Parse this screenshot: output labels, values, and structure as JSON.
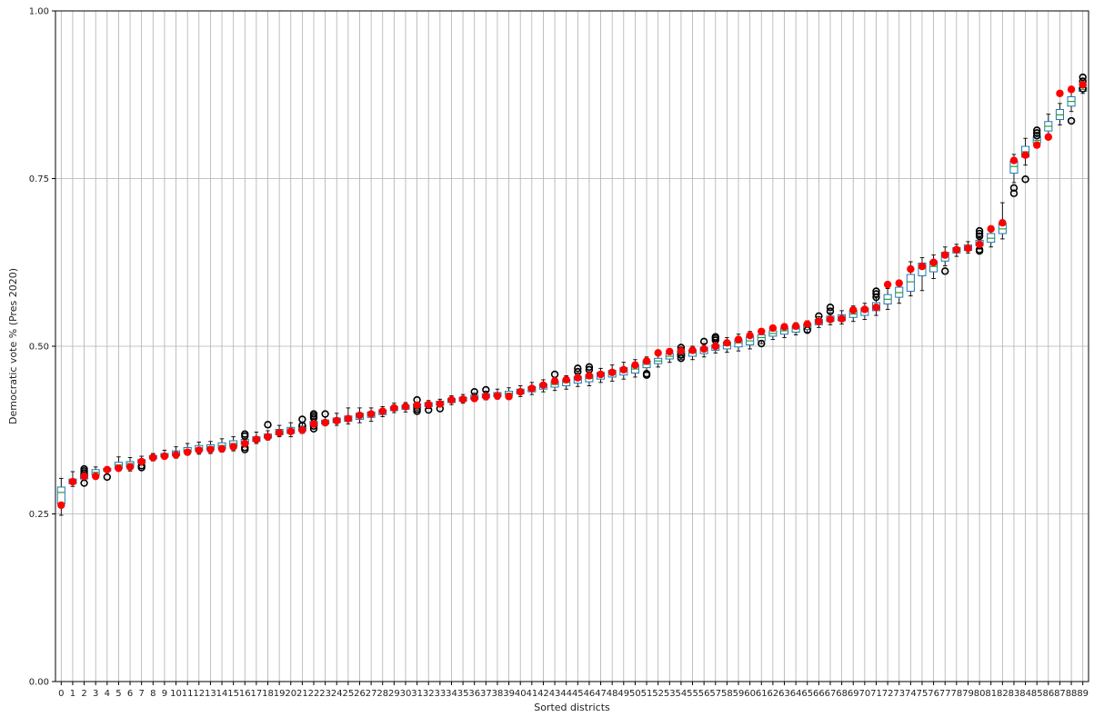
{
  "chart_data": {
    "type": "box",
    "title": "",
    "xlabel": "Sorted districts",
    "ylabel": "Democratic vote % (Pres 2020)",
    "ylim": [
      0.0,
      1.0
    ],
    "yticks": [
      "0.00",
      "0.25",
      "0.50",
      "0.75",
      "1.00"
    ],
    "ytick_values": [
      0.0,
      0.25,
      0.5,
      0.75,
      1.0
    ],
    "grid": true,
    "colors": {
      "box": "#1f77b4",
      "median": "#2ca02c",
      "whisker": "#000000",
      "enacted_point": "#ff0000",
      "outlier": "#000000",
      "grid": "#b0b0b0"
    },
    "categories": [
      "0",
      "1",
      "2",
      "3",
      "4",
      "5",
      "6",
      "7",
      "8",
      "9",
      "10",
      "11",
      "12",
      "13",
      "14",
      "15",
      "16",
      "17",
      "18",
      "19",
      "20",
      "21",
      "22",
      "23",
      "24",
      "25",
      "26",
      "27",
      "28",
      "29",
      "30",
      "31",
      "32",
      "33",
      "34",
      "35",
      "36",
      "37",
      "38",
      "39",
      "40",
      "41",
      "42",
      "43",
      "44",
      "45",
      "46",
      "47",
      "48",
      "49",
      "50",
      "51",
      "52",
      "53",
      "54",
      "55",
      "56",
      "57",
      "58",
      "59",
      "60",
      "61",
      "62",
      "63",
      "64",
      "65",
      "66",
      "67",
      "68",
      "69",
      "70",
      "71",
      "72",
      "73",
      "74",
      "75",
      "76",
      "77",
      "78",
      "79",
      "80",
      "81",
      "82",
      "83",
      "84",
      "85",
      "86",
      "87",
      "88",
      "89"
    ],
    "enacted_plan": [
      0.263,
      0.298,
      0.306,
      0.306,
      0.316,
      0.318,
      0.32,
      0.328,
      0.334,
      0.336,
      0.338,
      0.342,
      0.345,
      0.346,
      0.347,
      0.35,
      0.355,
      0.361,
      0.365,
      0.371,
      0.373,
      0.375,
      0.384,
      0.386,
      0.389,
      0.392,
      0.397,
      0.399,
      0.403,
      0.408,
      0.41,
      0.412,
      0.413,
      0.414,
      0.42,
      0.421,
      0.422,
      0.425,
      0.426,
      0.425,
      0.432,
      0.437,
      0.442,
      0.448,
      0.45,
      0.453,
      0.456,
      0.458,
      0.461,
      0.465,
      0.472,
      0.478,
      0.49,
      0.492,
      0.493,
      0.494,
      0.496,
      0.5,
      0.505,
      0.51,
      0.516,
      0.522,
      0.527,
      0.529,
      0.53,
      0.533,
      0.537,
      0.54,
      0.541,
      0.554,
      0.555,
      0.558,
      0.592,
      0.594,
      0.615,
      0.619,
      0.625,
      0.636,
      0.644,
      0.646,
      0.652,
      0.675,
      0.684,
      0.777,
      0.785,
      0.8,
      0.812,
      0.877,
      0.883,
      0.89
    ],
    "boxes": [
      {
        "whislo": 0.248,
        "q1": 0.265,
        "med": 0.282,
        "q3": 0.29,
        "whishi": 0.303,
        "fliers": []
      },
      {
        "whislo": 0.291,
        "q1": 0.295,
        "med": 0.299,
        "q3": 0.302,
        "whishi": 0.313,
        "fliers": []
      },
      {
        "whislo": 0.3,
        "q1": 0.302,
        "med": 0.305,
        "q3": 0.309,
        "whishi": 0.313,
        "fliers": [
          0.296,
          0.311,
          0.314,
          0.317
        ]
      },
      {
        "whislo": 0.303,
        "q1": 0.308,
        "med": 0.312,
        "q3": 0.316,
        "whishi": 0.32,
        "fliers": []
      },
      {
        "whislo": 0.313,
        "q1": 0.314,
        "med": 0.316,
        "q3": 0.318,
        "whishi": 0.32,
        "fliers": [
          0.305
        ]
      },
      {
        "whislo": 0.314,
        "q1": 0.318,
        "med": 0.323,
        "q3": 0.327,
        "whishi": 0.335,
        "fliers": []
      },
      {
        "whislo": 0.314,
        "q1": 0.32,
        "med": 0.325,
        "q3": 0.328,
        "whishi": 0.334,
        "fliers": []
      },
      {
        "whislo": 0.323,
        "q1": 0.326,
        "med": 0.328,
        "q3": 0.331,
        "whishi": 0.336,
        "fliers": [
          0.319,
          0.322
        ]
      },
      {
        "whislo": 0.329,
        "q1": 0.332,
        "med": 0.334,
        "q3": 0.337,
        "whishi": 0.34,
        "fliers": []
      },
      {
        "whislo": 0.332,
        "q1": 0.335,
        "med": 0.337,
        "q3": 0.34,
        "whishi": 0.345,
        "fliers": []
      },
      {
        "whislo": 0.333,
        "q1": 0.337,
        "med": 0.341,
        "q3": 0.344,
        "whishi": 0.35,
        "fliers": []
      },
      {
        "whislo": 0.338,
        "q1": 0.342,
        "med": 0.345,
        "q3": 0.349,
        "whishi": 0.355,
        "fliers": []
      },
      {
        "whislo": 0.339,
        "q1": 0.344,
        "med": 0.348,
        "q3": 0.352,
        "whishi": 0.357,
        "fliers": []
      },
      {
        "whislo": 0.34,
        "q1": 0.346,
        "med": 0.35,
        "q3": 0.353,
        "whishi": 0.358,
        "fliers": []
      },
      {
        "whislo": 0.342,
        "q1": 0.348,
        "med": 0.352,
        "q3": 0.356,
        "whishi": 0.362,
        "fliers": []
      },
      {
        "whislo": 0.344,
        "q1": 0.351,
        "med": 0.355,
        "q3": 0.359,
        "whishi": 0.365,
        "fliers": []
      },
      {
        "whislo": 0.351,
        "q1": 0.354,
        "med": 0.358,
        "q3": 0.361,
        "whishi": 0.365,
        "fliers": [
          0.346,
          0.349,
          0.366,
          0.369
        ]
      },
      {
        "whislo": 0.355,
        "q1": 0.358,
        "med": 0.362,
        "q3": 0.365,
        "whishi": 0.372,
        "fliers": []
      },
      {
        "whislo": 0.36,
        "q1": 0.363,
        "med": 0.366,
        "q3": 0.369,
        "whishi": 0.374,
        "fliers": [
          0.383
        ]
      },
      {
        "whislo": 0.365,
        "q1": 0.368,
        "med": 0.372,
        "q3": 0.376,
        "whishi": 0.382,
        "fliers": []
      },
      {
        "whislo": 0.365,
        "q1": 0.37,
        "med": 0.375,
        "q3": 0.379,
        "whishi": 0.386,
        "fliers": []
      },
      {
        "whislo": 0.37,
        "q1": 0.374,
        "med": 0.378,
        "q3": 0.381,
        "whishi": 0.385,
        "fliers": [
          0.382,
          0.391
        ]
      },
      {
        "whislo": 0.38,
        "q1": 0.382,
        "med": 0.385,
        "q3": 0.388,
        "whishi": 0.391,
        "fliers": [
          0.377,
          0.381,
          0.393,
          0.396,
          0.399
        ]
      },
      {
        "whislo": 0.382,
        "q1": 0.384,
        "med": 0.387,
        "q3": 0.39,
        "whishi": 0.395,
        "fliers": [
          0.399
        ]
      },
      {
        "whislo": 0.382,
        "q1": 0.386,
        "med": 0.39,
        "q3": 0.393,
        "whishi": 0.4,
        "fliers": []
      },
      {
        "whislo": 0.384,
        "q1": 0.388,
        "med": 0.392,
        "q3": 0.396,
        "whishi": 0.408,
        "fliers": []
      },
      {
        "whislo": 0.386,
        "q1": 0.391,
        "med": 0.396,
        "q3": 0.4,
        "whishi": 0.408,
        "fliers": []
      },
      {
        "whislo": 0.388,
        "q1": 0.394,
        "med": 0.398,
        "q3": 0.402,
        "whishi": 0.408,
        "fliers": []
      },
      {
        "whislo": 0.395,
        "q1": 0.398,
        "med": 0.402,
        "q3": 0.405,
        "whishi": 0.41,
        "fliers": []
      },
      {
        "whislo": 0.401,
        "q1": 0.404,
        "med": 0.407,
        "q3": 0.41,
        "whishi": 0.415,
        "fliers": []
      },
      {
        "whislo": 0.402,
        "q1": 0.406,
        "med": 0.409,
        "q3": 0.412,
        "whishi": 0.416,
        "fliers": []
      },
      {
        "whislo": 0.404,
        "q1": 0.408,
        "med": 0.411,
        "q3": 0.414,
        "whishi": 0.416,
        "fliers": [
          0.403,
          0.406,
          0.42
        ]
      },
      {
        "whislo": 0.407,
        "q1": 0.41,
        "med": 0.413,
        "q3": 0.416,
        "whishi": 0.419,
        "fliers": [
          0.405
        ]
      },
      {
        "whislo": 0.41,
        "q1": 0.412,
        "med": 0.415,
        "q3": 0.418,
        "whishi": 0.421,
        "fliers": [
          0.407
        ]
      },
      {
        "whislo": 0.413,
        "q1": 0.416,
        "med": 0.419,
        "q3": 0.422,
        "whishi": 0.426,
        "fliers": []
      },
      {
        "whislo": 0.415,
        "q1": 0.418,
        "med": 0.421,
        "q3": 0.424,
        "whishi": 0.428,
        "fliers": []
      },
      {
        "whislo": 0.418,
        "q1": 0.421,
        "med": 0.424,
        "q3": 0.427,
        "whishi": 0.43,
        "fliers": [
          0.432
        ]
      },
      {
        "whislo": 0.42,
        "q1": 0.423,
        "med": 0.426,
        "q3": 0.429,
        "whishi": 0.433,
        "fliers": [
          0.435
        ]
      },
      {
        "whislo": 0.421,
        "q1": 0.425,
        "med": 0.428,
        "q3": 0.431,
        "whishi": 0.436,
        "fliers": []
      },
      {
        "whislo": 0.423,
        "q1": 0.427,
        "med": 0.43,
        "q3": 0.433,
        "whishi": 0.438,
        "fliers": []
      },
      {
        "whislo": 0.425,
        "q1": 0.429,
        "med": 0.432,
        "q3": 0.436,
        "whishi": 0.441,
        "fliers": []
      },
      {
        "whislo": 0.428,
        "q1": 0.432,
        "med": 0.436,
        "q3": 0.44,
        "whishi": 0.446,
        "fliers": []
      },
      {
        "whislo": 0.432,
        "q1": 0.436,
        "med": 0.44,
        "q3": 0.444,
        "whishi": 0.45,
        "fliers": []
      },
      {
        "whislo": 0.434,
        "q1": 0.439,
        "med": 0.443,
        "q3": 0.447,
        "whishi": 0.453,
        "fliers": [
          0.458
        ]
      },
      {
        "whislo": 0.436,
        "q1": 0.441,
        "med": 0.446,
        "q3": 0.45,
        "whishi": 0.456,
        "fliers": []
      },
      {
        "whislo": 0.44,
        "q1": 0.445,
        "med": 0.45,
        "q3": 0.455,
        "whishi": 0.46,
        "fliers": [
          0.462,
          0.467
        ]
      },
      {
        "whislo": 0.441,
        "q1": 0.447,
        "med": 0.452,
        "q3": 0.457,
        "whishi": 0.462,
        "fliers": [
          0.465,
          0.469
        ]
      },
      {
        "whislo": 0.446,
        "q1": 0.451,
        "med": 0.456,
        "q3": 0.461,
        "whishi": 0.467,
        "fliers": []
      },
      {
        "whislo": 0.448,
        "q1": 0.454,
        "med": 0.459,
        "q3": 0.464,
        "whishi": 0.472,
        "fliers": []
      },
      {
        "whislo": 0.451,
        "q1": 0.457,
        "med": 0.462,
        "q3": 0.468,
        "whishi": 0.476,
        "fliers": []
      },
      {
        "whislo": 0.454,
        "q1": 0.46,
        "med": 0.466,
        "q3": 0.471,
        "whishi": 0.48,
        "fliers": []
      },
      {
        "whislo": 0.463,
        "q1": 0.468,
        "med": 0.473,
        "q3": 0.478,
        "whishi": 0.484,
        "fliers": [
          0.457,
          0.459
        ]
      },
      {
        "whislo": 0.469,
        "q1": 0.474,
        "med": 0.478,
        "q3": 0.482,
        "whishi": 0.488,
        "fliers": []
      },
      {
        "whislo": 0.476,
        "q1": 0.481,
        "med": 0.485,
        "q3": 0.489,
        "whishi": 0.495,
        "fliers": []
      },
      {
        "whislo": 0.48,
        "q1": 0.484,
        "med": 0.488,
        "q3": 0.492,
        "whishi": 0.496,
        "fliers": [
          0.482,
          0.487,
          0.494,
          0.498
        ]
      },
      {
        "whislo": 0.48,
        "q1": 0.485,
        "med": 0.49,
        "q3": 0.494,
        "whishi": 0.5,
        "fliers": []
      },
      {
        "whislo": 0.484,
        "q1": 0.489,
        "med": 0.494,
        "q3": 0.498,
        "whishi": 0.504,
        "fliers": [
          0.507
        ]
      },
      {
        "whislo": 0.49,
        "q1": 0.494,
        "med": 0.498,
        "q3": 0.502,
        "whishi": 0.507,
        "fliers": [
          0.509,
          0.512,
          0.514
        ]
      },
      {
        "whislo": 0.491,
        "q1": 0.496,
        "med": 0.501,
        "q3": 0.506,
        "whishi": 0.513,
        "fliers": []
      },
      {
        "whislo": 0.493,
        "q1": 0.499,
        "med": 0.505,
        "q3": 0.51,
        "whishi": 0.518,
        "fliers": []
      },
      {
        "whislo": 0.496,
        "q1": 0.502,
        "med": 0.508,
        "q3": 0.514,
        "whishi": 0.522,
        "fliers": []
      },
      {
        "whislo": 0.504,
        "q1": 0.508,
        "med": 0.513,
        "q3": 0.517,
        "whishi": 0.523,
        "fliers": [
          0.504
        ]
      },
      {
        "whislo": 0.51,
        "q1": 0.515,
        "med": 0.519,
        "q3": 0.523,
        "whishi": 0.528,
        "fliers": []
      },
      {
        "whislo": 0.513,
        "q1": 0.518,
        "med": 0.523,
        "q3": 0.527,
        "whishi": 0.533,
        "fliers": []
      },
      {
        "whislo": 0.517,
        "q1": 0.521,
        "med": 0.526,
        "q3": 0.53,
        "whishi": 0.535,
        "fliers": []
      },
      {
        "whislo": 0.521,
        "q1": 0.525,
        "med": 0.529,
        "q3": 0.533,
        "whishi": 0.538,
        "fliers": [
          0.524
        ]
      },
      {
        "whislo": 0.528,
        "q1": 0.532,
        "med": 0.536,
        "q3": 0.54,
        "whishi": 0.544,
        "fliers": [
          0.545
        ]
      },
      {
        "whislo": 0.532,
        "q1": 0.537,
        "med": 0.541,
        "q3": 0.545,
        "whishi": 0.55,
        "fliers": [
          0.552,
          0.558
        ]
      },
      {
        "whislo": 0.533,
        "q1": 0.538,
        "med": 0.542,
        "q3": 0.547,
        "whishi": 0.553,
        "fliers": []
      },
      {
        "whislo": 0.537,
        "q1": 0.543,
        "med": 0.548,
        "q3": 0.553,
        "whishi": 0.56,
        "fliers": []
      },
      {
        "whislo": 0.54,
        "q1": 0.546,
        "med": 0.552,
        "q3": 0.557,
        "whishi": 0.564,
        "fliers": []
      },
      {
        "whislo": 0.546,
        "q1": 0.553,
        "med": 0.559,
        "q3": 0.565,
        "whishi": 0.572,
        "fliers": [
          0.573,
          0.578,
          0.582
        ]
      },
      {
        "whislo": 0.555,
        "q1": 0.563,
        "med": 0.57,
        "q3": 0.577,
        "whishi": 0.586,
        "fliers": []
      },
      {
        "whislo": 0.564,
        "q1": 0.573,
        "med": 0.58,
        "q3": 0.588,
        "whishi": 0.597,
        "fliers": []
      },
      {
        "whislo": 0.575,
        "q1": 0.582,
        "med": 0.596,
        "q3": 0.607,
        "whishi": 0.626,
        "fliers": []
      },
      {
        "whislo": 0.583,
        "q1": 0.605,
        "med": 0.616,
        "q3": 0.624,
        "whishi": 0.632,
        "fliers": []
      },
      {
        "whislo": 0.601,
        "q1": 0.611,
        "med": 0.619,
        "q3": 0.627,
        "whishi": 0.636,
        "fliers": []
      },
      {
        "whislo": 0.62,
        "q1": 0.627,
        "med": 0.634,
        "q3": 0.64,
        "whishi": 0.648,
        "fliers": [
          0.612
        ]
      },
      {
        "whislo": 0.634,
        "q1": 0.639,
        "med": 0.643,
        "q3": 0.647,
        "whishi": 0.652,
        "fliers": []
      },
      {
        "whislo": 0.639,
        "q1": 0.643,
        "med": 0.647,
        "q3": 0.651,
        "whishi": 0.656,
        "fliers": []
      },
      {
        "whislo": 0.645,
        "q1": 0.65,
        "med": 0.654,
        "q3": 0.658,
        "whishi": 0.662,
        "fliers": [
          0.642,
          0.644,
          0.664,
          0.668,
          0.672
        ]
      },
      {
        "whislo": 0.648,
        "q1": 0.655,
        "med": 0.661,
        "q3": 0.668,
        "whishi": 0.676,
        "fliers": []
      },
      {
        "whislo": 0.66,
        "q1": 0.668,
        "med": 0.675,
        "q3": 0.683,
        "whishi": 0.714,
        "fliers": []
      },
      {
        "whislo": 0.744,
        "q1": 0.758,
        "med": 0.768,
        "q3": 0.776,
        "whishi": 0.786,
        "fliers": [
          0.728,
          0.736
        ]
      },
      {
        "whislo": 0.77,
        "q1": 0.782,
        "med": 0.79,
        "q3": 0.798,
        "whishi": 0.81,
        "fliers": [
          0.749
        ]
      },
      {
        "whislo": 0.797,
        "q1": 0.803,
        "med": 0.807,
        "q3": 0.812,
        "whishi": 0.818,
        "fliers": [
          0.814,
          0.818,
          0.822
        ]
      },
      {
        "whislo": 0.813,
        "q1": 0.821,
        "med": 0.828,
        "q3": 0.835,
        "whishi": 0.846,
        "fliers": []
      },
      {
        "whislo": 0.83,
        "q1": 0.838,
        "med": 0.845,
        "q3": 0.853,
        "whishi": 0.862,
        "fliers": []
      },
      {
        "whislo": 0.85,
        "q1": 0.858,
        "med": 0.865,
        "q3": 0.872,
        "whishi": 0.879,
        "fliers": [
          0.836
        ]
      },
      {
        "whislo": 0.877,
        "q1": 0.88,
        "med": 0.883,
        "q3": 0.886,
        "whishi": 0.889,
        "fliers": [
          0.884,
          0.89,
          0.895,
          0.901
        ]
      }
    ]
  }
}
